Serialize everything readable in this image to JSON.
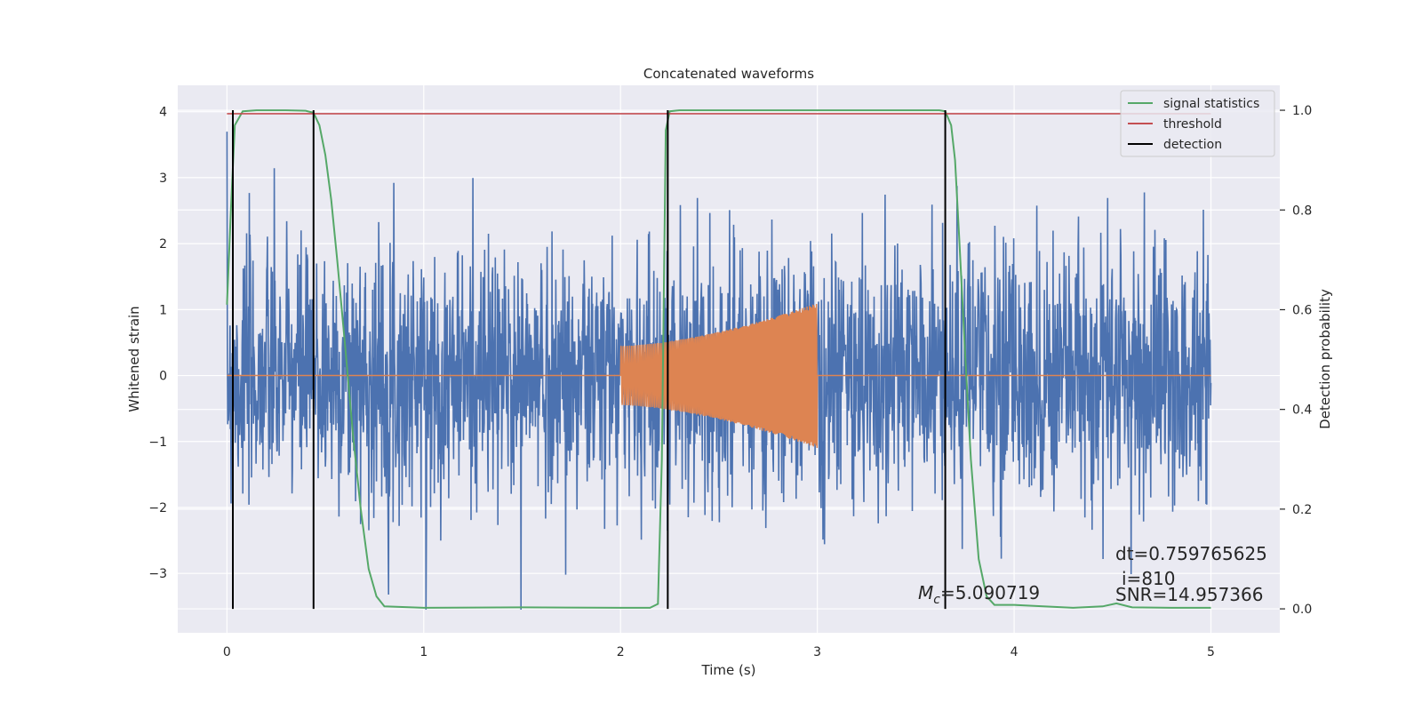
{
  "chart_data": {
    "type": "line",
    "title": "Concatenated waveforms",
    "xlabel": "Time (s)",
    "ylabel": "Whitened strain",
    "y2label": "Detection probability",
    "xlim": [
      -0.25,
      5.35
    ],
    "ylim": [
      -3.9,
      4.4
    ],
    "y2lim": [
      -0.048,
      1.05
    ],
    "x_ticks": [
      0,
      1,
      2,
      3,
      4,
      5
    ],
    "x_tick_labels": [
      "0",
      "1",
      "2",
      "3",
      "4",
      "5"
    ],
    "y_ticks": [
      -3,
      -2,
      -1,
      0,
      1,
      2,
      3,
      4
    ],
    "y_tick_labels": [
      "−3",
      "−2",
      "−1",
      "0",
      "1",
      "2",
      "3",
      "4"
    ],
    "y2_ticks": [
      0.0,
      0.2,
      0.4,
      0.6,
      0.8,
      1.0
    ],
    "y2_tick_labels": [
      "0.0",
      "0.2",
      "0.4",
      "0.6",
      "0.8",
      "1.0"
    ],
    "grid": true,
    "legend_position": "top-right",
    "colors": {
      "strain": "#4c72b0",
      "template": "#dd8452",
      "signal": "#55a868",
      "threshold": "#c44e52",
      "detection": "#000000",
      "axes_bg": "#eaeaf2",
      "grid": "#ffffff"
    },
    "series": [
      {
        "name": "whitened strain",
        "axis": "left",
        "kind": "noise",
        "x_range": [
          0,
          5
        ],
        "typical_amplitude": 1.0,
        "max_value": 4.05,
        "min_value": -3.55
      },
      {
        "name": "injected waveform",
        "axis": "left",
        "kind": "chirp",
        "x_range": [
          2,
          3
        ],
        "start_amplitude": 0.45,
        "end_amplitude": 1.1
      },
      {
        "name": "signal statistics",
        "axis": "right",
        "x": [
          0,
          0.02,
          0.04,
          0.08,
          0.15,
          0.3,
          0.4,
          0.44,
          0.47,
          0.5,
          0.53,
          0.56,
          0.6,
          0.64,
          0.68,
          0.72,
          0.76,
          0.8,
          1.0,
          1.5,
          2.0,
          2.15,
          2.19,
          2.21,
          2.23,
          2.25,
          2.3,
          2.5,
          3.0,
          3.5,
          3.62,
          3.65,
          3.68,
          3.7,
          3.72,
          3.75,
          3.78,
          3.82,
          3.86,
          3.9,
          4.0,
          4.3,
          4.45,
          4.52,
          4.6,
          4.8,
          5.0
        ],
        "values": [
          0.61,
          0.8,
          0.97,
          0.998,
          1.0,
          1.0,
          0.999,
          0.995,
          0.97,
          0.91,
          0.82,
          0.7,
          0.53,
          0.35,
          0.2,
          0.08,
          0.025,
          0.005,
          0.002,
          0.003,
          0.002,
          0.002,
          0.01,
          0.3,
          0.96,
          0.998,
          1.0,
          1.0,
          1.0,
          1.0,
          1.0,
          0.998,
          0.97,
          0.9,
          0.75,
          0.52,
          0.3,
          0.1,
          0.025,
          0.008,
          0.008,
          0.002,
          0.005,
          0.011,
          0.003,
          0.002,
          0.002
        ]
      },
      {
        "name": "threshold",
        "axis": "right",
        "x": [
          0,
          5
        ],
        "values": [
          0.993,
          0.993
        ]
      }
    ],
    "detections": [
      0.03,
      0.44,
      2.24,
      3.65
    ],
    "legend": [
      "signal statistics",
      "threshold",
      "detection"
    ],
    "annotations": {
      "mc_symbol": "M",
      "mc_subscript": "c",
      "mc_value": "=5.090719",
      "dt": "dt=0.759765625",
      "index": "i=810",
      "snr": "SNR=14.957366"
    }
  }
}
